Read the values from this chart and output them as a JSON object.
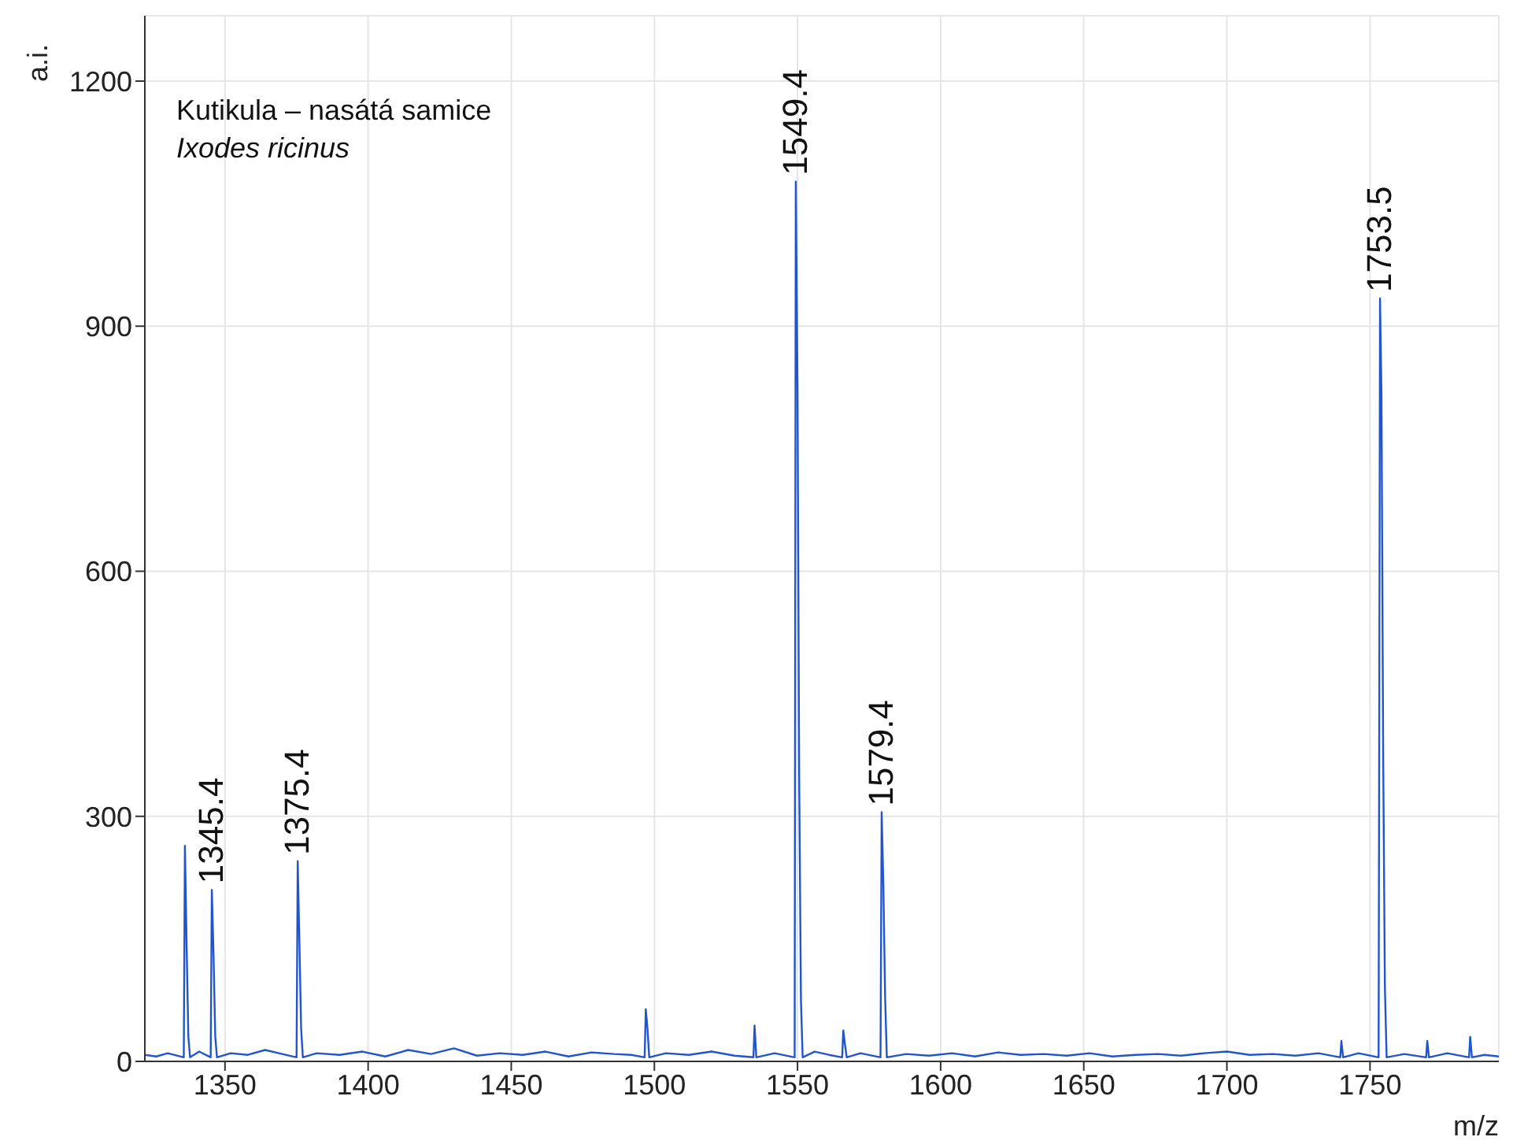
{
  "chart_data": {
    "type": "line",
    "xlabel": "m/z",
    "ylabel": "a.i.",
    "annotations": [
      "Kutikula – nasátá samice",
      "Ixodes ricinus",
      {
        "text": "1345.4",
        "x": 1345.4,
        "y": 210
      },
      {
        "text": "1375.4",
        "x": 1375.4,
        "y": 245
      },
      {
        "text": "1549.4",
        "x": 1549.4,
        "y": 1077
      },
      {
        "text": "1579.4",
        "x": 1579.4,
        "y": 305
      },
      {
        "text": "1753.5",
        "x": 1753.5,
        "y": 934
      }
    ],
    "xlim": [
      1322,
      1795
    ],
    "xticks": [
      1350,
      1400,
      1450,
      1500,
      1550,
      1600,
      1650,
      1700,
      1750
    ],
    "ylim": [
      0,
      1280
    ],
    "yticks": [
      0,
      300,
      600,
      900,
      1200
    ],
    "grid": true,
    "marker": "none",
    "line_style": "solid",
    "series": [
      {
        "color": "#2255cc",
        "x": [
          1322,
          1326,
          1330,
          1335.6,
          1336,
          1336.6,
          1337.2,
          1337.8,
          1341,
          1345,
          1345.4,
          1346,
          1346.6,
          1347.2,
          1352,
          1358,
          1364,
          1370,
          1375,
          1375.4,
          1376,
          1376.6,
          1377.2,
          1382,
          1390,
          1398,
          1406,
          1414,
          1422,
          1430,
          1438,
          1446,
          1454,
          1462,
          1470,
          1478,
          1486,
          1492,
          1496.6,
          1497,
          1497.6,
          1498.2,
          1504,
          1512,
          1520,
          1528,
          1534.6,
          1535,
          1535.6,
          1542,
          1549,
          1549.4,
          1550,
          1550.6,
          1551.2,
          1551.8,
          1556,
          1561,
          1565.6,
          1566,
          1566.6,
          1567.2,
          1572,
          1579,
          1579.4,
          1580,
          1580.6,
          1581.2,
          1588,
          1596,
          1604,
          1612,
          1620,
          1628,
          1636,
          1644,
          1652,
          1660,
          1668,
          1676,
          1684,
          1692,
          1700,
          1708,
          1716,
          1724,
          1732,
          1739.6,
          1740,
          1740.6,
          1746,
          1753,
          1753.5,
          1754,
          1754.6,
          1755.2,
          1755.8,
          1762,
          1769.6,
          1770,
          1770.6,
          1777,
          1784.6,
          1785,
          1785.6,
          1790,
          1795
        ],
        "values": [
          8,
          6,
          10,
          5,
          264,
          140,
          30,
          5,
          12,
          5,
          210,
          130,
          30,
          5,
          10,
          8,
          14,
          9,
          5,
          245,
          145,
          40,
          5,
          10,
          8,
          12,
          6,
          14,
          9,
          16,
          7,
          10,
          8,
          12,
          6,
          11,
          9,
          8,
          5,
          64,
          40,
          5,
          10,
          8,
          12,
          7,
          5,
          44,
          5,
          10,
          5,
          1077,
          825,
          340,
          75,
          5,
          12,
          8,
          5,
          38,
          20,
          5,
          10,
          5,
          305,
          215,
          80,
          5,
          9,
          7,
          10,
          6,
          11,
          8,
          9,
          7,
          10,
          6,
          8,
          9,
          7,
          10,
          12,
          8,
          9,
          7,
          10,
          5,
          25,
          5,
          10,
          5,
          934,
          815,
          375,
          90,
          5,
          9,
          5,
          25,
          5,
          10,
          5,
          30,
          5,
          8,
          6
        ]
      }
    ]
  }
}
